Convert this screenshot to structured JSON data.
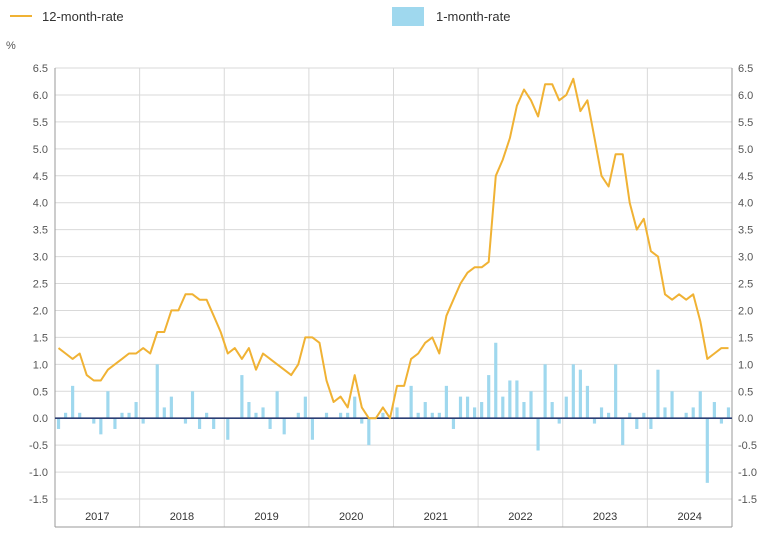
{
  "legend": {
    "line_label": "12-month-rate",
    "bar_label": "1-month-rate"
  },
  "unit": "%",
  "colors": {
    "line": "#f0b234",
    "bars": "#9fd8ee",
    "grid": "#d9d9d9",
    "zero_line": "#2c3e73",
    "frame": "#9a9a9a"
  },
  "chart_data": {
    "type": "line+bar",
    "title": "",
    "xlabel": "",
    "ylabel": "%",
    "ylim": [
      -1.5,
      6.5
    ],
    "yticks": [
      -1.5,
      -1.0,
      -0.5,
      0.0,
      0.5,
      1.0,
      1.5,
      2.0,
      2.5,
      3.0,
      3.5,
      4.0,
      4.5,
      5.0,
      5.5,
      6.0,
      6.5
    ],
    "ytick_labels": [
      "-1.5",
      "-1.0",
      "-0.5",
      "0.0",
      "0.5",
      "1.0",
      "1.5",
      "2.0",
      "2.5",
      "3.0",
      "3.5",
      "4.0",
      "4.5",
      "5.0",
      "5.5",
      "6.0",
      "6.5"
    ],
    "years": [
      "2017",
      "2018",
      "2019",
      "2020",
      "2021",
      "2022",
      "2023",
      "2024"
    ],
    "x_start": "2017-01",
    "x_end": "2024-12",
    "grid": true,
    "legend_position": "top",
    "series": [
      {
        "name": "12-month-rate",
        "type": "line",
        "start": "2017-01",
        "values": [
          1.3,
          1.2,
          1.1,
          1.2,
          0.8,
          0.7,
          0.7,
          0.9,
          1.0,
          1.1,
          1.2,
          1.2,
          1.3,
          1.2,
          1.6,
          1.6,
          2.0,
          2.0,
          2.3,
          2.3,
          2.2,
          2.2,
          1.9,
          1.6,
          1.2,
          1.3,
          1.1,
          1.3,
          0.9,
          1.2,
          1.1,
          1.0,
          0.9,
          0.8,
          1.0,
          1.5,
          1.5,
          1.4,
          0.7,
          0.3,
          0.4,
          0.2,
          0.8,
          0.2,
          0.0,
          0.0,
          0.2,
          0.0,
          0.6,
          0.6,
          1.1,
          1.2,
          1.4,
          1.5,
          1.2,
          1.9,
          2.2,
          2.5,
          2.7,
          2.8,
          2.8,
          2.9,
          4.5,
          4.8,
          5.2,
          5.8,
          6.1,
          5.9,
          5.6,
          6.2,
          6.2,
          5.9,
          6.0,
          6.3,
          5.7,
          5.9,
          5.2,
          4.5,
          4.3,
          4.9,
          4.9,
          4.0,
          3.5,
          3.7,
          3.1,
          3.0,
          2.3,
          2.2,
          2.3,
          2.2,
          2.3,
          1.8,
          1.1,
          1.2,
          1.3,
          1.3
        ]
      },
      {
        "name": "1-month-rate",
        "type": "bar",
        "start": "2017-01",
        "values": [
          -0.2,
          0.1,
          0.6,
          0.1,
          0.0,
          -0.1,
          -0.3,
          0.5,
          -0.2,
          0.1,
          0.1,
          0.3,
          -0.1,
          0.0,
          1.0,
          0.2,
          0.4,
          0.0,
          -0.1,
          0.5,
          -0.2,
          0.1,
          -0.2,
          0.0,
          -0.4,
          0.0,
          0.8,
          0.3,
          0.1,
          0.2,
          -0.2,
          0.5,
          -0.3,
          0.0,
          0.1,
          0.4,
          -0.4,
          0.0,
          0.1,
          0.0,
          0.1,
          0.1,
          0.4,
          -0.1,
          -0.5,
          0.0,
          0.1,
          0.0,
          0.2,
          0.0,
          0.6,
          0.1,
          0.3,
          0.1,
          0.1,
          0.6,
          -0.2,
          0.4,
          0.4,
          0.2,
          0.3,
          0.8,
          1.4,
          0.4,
          0.7,
          0.7,
          0.3,
          0.5,
          -0.6,
          1.0,
          0.3,
          -0.1,
          0.4,
          1.0,
          0.9,
          0.6,
          -0.1,
          0.2,
          0.1,
          1.0,
          -0.5,
          0.1,
          -0.2,
          0.1,
          -0.2,
          0.9,
          0.2,
          0.5,
          0.0,
          0.1,
          0.2,
          0.5,
          -1.2,
          0.3,
          -0.1,
          0.2
        ]
      }
    ]
  }
}
